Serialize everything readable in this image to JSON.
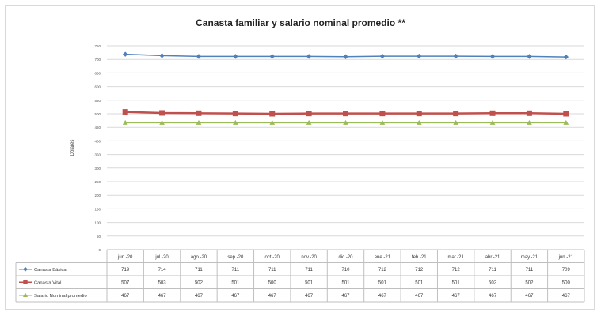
{
  "chart_data": {
    "type": "line",
    "title": "Canasta familiar y salario nominal promedio **",
    "ylabel": "Dólares",
    "ylim": [
      0,
      750
    ],
    "yticks": [
      0,
      50,
      100,
      150,
      200,
      250,
      300,
      350,
      400,
      450,
      500,
      550,
      600,
      650,
      700,
      750
    ],
    "grid": true,
    "legend": "table-left",
    "categories": [
      "jun.-20",
      "jul.-20",
      "ago.-20",
      "sep.-20",
      "oct.-20",
      "nov.-20",
      "dic.-20",
      "ene.-21",
      "feb.-21",
      "mar.-21",
      "abr.-21",
      "may.-21",
      "jun.-21"
    ],
    "series": [
      {
        "name": "Canasta Básica",
        "color": "#4f81bd",
        "marker": "diamond",
        "values": [
          719,
          714,
          711,
          711,
          711,
          711,
          710,
          712,
          712,
          712,
          711,
          711,
          709
        ],
        "labels": [
          "719",
          "714",
          "711",
          "711",
          "711",
          "711",
          "710",
          "712",
          "712",
          "712",
          "711",
          "711",
          "709"
        ]
      },
      {
        "name": "Canasta Vital",
        "color": "#c0504d",
        "marker": "square",
        "values": [
          507,
          503,
          502,
          501,
          500,
          501,
          501,
          501,
          501,
          501,
          502,
          502,
          500
        ],
        "labels": [
          "507",
          "503",
          "502",
          "501",
          "500",
          "501",
          "501",
          "501",
          "501",
          "501",
          "502",
          "502",
          "500"
        ]
      },
      {
        "name": "Salario Nominal promedio",
        "color": "#9bbb59",
        "marker": "triangle",
        "values": [
          467,
          467,
          467,
          467,
          467,
          467,
          467,
          467,
          467,
          467,
          467,
          467,
          467
        ],
        "labels": [
          "467",
          "467",
          "467",
          "467",
          "467",
          "467",
          "467",
          "467",
          "467",
          "467",
          "467",
          "467",
          "467"
        ]
      }
    ]
  }
}
